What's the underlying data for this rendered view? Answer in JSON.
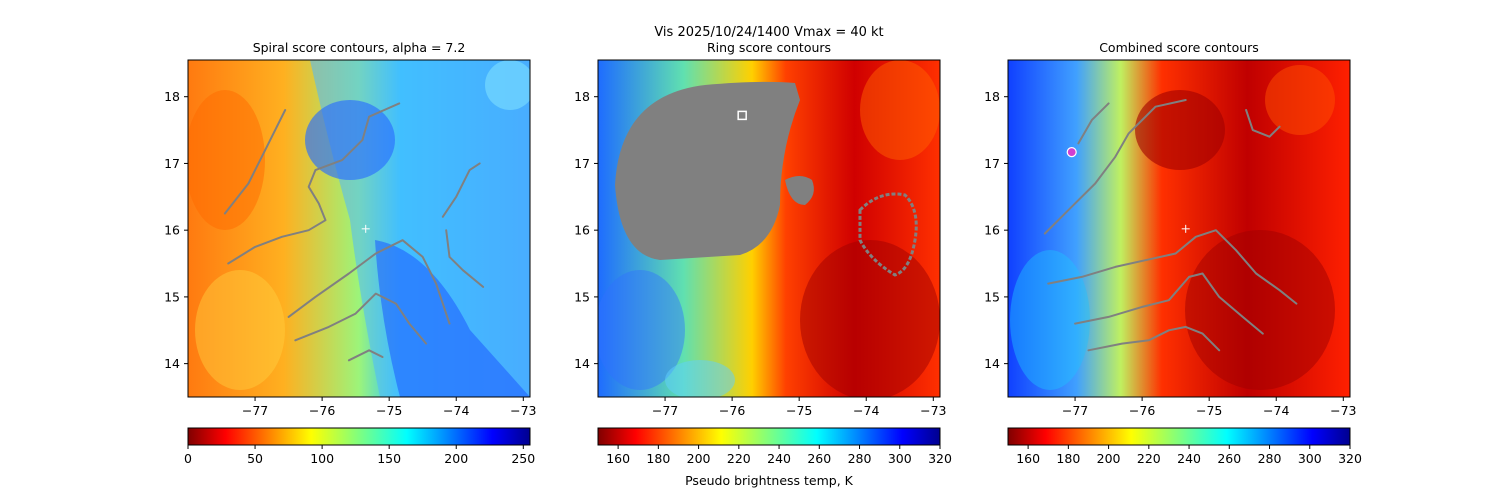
{
  "figure": {
    "suptitle_line1": "Vis  2025/10/24/1400    Vmax = 40 kt",
    "colorbar_label": "Pseudo brightness temp, K"
  },
  "chart_data": [
    {
      "type": "heatmap",
      "title": "Spiral score contours, alpha =  7.2",
      "x_ticks": [
        -77,
        -76,
        -75,
        -74,
        -73
      ],
      "y_ticks": [
        14,
        15,
        16,
        17,
        18
      ],
      "xlim": [
        -78.0,
        -72.9
      ],
      "ylim": [
        13.5,
        18.55
      ],
      "colorbar": {
        "ticks": [
          0,
          50,
          100,
          150,
          200,
          250
        ],
        "range": [
          0,
          255
        ],
        "colormap": "jet_r"
      },
      "center_marker": {
        "lon": -75.35,
        "lat": 16.02,
        "style": "plus",
        "color": "#ffffff"
      },
      "contours": [
        [
          [
            -77.45,
            16.25
          ],
          [
            -77.1,
            16.7
          ],
          [
            -76.8,
            17.3
          ],
          [
            -76.55,
            17.8
          ]
        ],
        [
          [
            -77.4,
            15.5
          ],
          [
            -77.0,
            15.75
          ],
          [
            -76.6,
            15.9
          ],
          [
            -76.2,
            16.0
          ],
          [
            -75.95,
            16.15
          ],
          [
            -76.05,
            16.4
          ],
          [
            -76.2,
            16.65
          ],
          [
            -76.1,
            16.9
          ],
          [
            -75.7,
            17.05
          ],
          [
            -75.4,
            17.35
          ],
          [
            -75.3,
            17.7
          ],
          [
            -74.85,
            17.9
          ]
        ],
        [
          [
            -76.5,
            14.7
          ],
          [
            -76.1,
            15.0
          ],
          [
            -75.6,
            15.35
          ],
          [
            -75.2,
            15.65
          ],
          [
            -74.8,
            15.85
          ],
          [
            -74.5,
            15.6
          ],
          [
            -74.3,
            15.2
          ],
          [
            -74.1,
            14.6
          ]
        ],
        [
          [
            -76.4,
            14.35
          ],
          [
            -75.9,
            14.55
          ],
          [
            -75.5,
            14.75
          ],
          [
            -75.2,
            15.05
          ],
          [
            -74.9,
            14.9
          ],
          [
            -74.7,
            14.6
          ],
          [
            -74.45,
            14.3
          ]
        ],
        [
          [
            -75.6,
            14.05
          ],
          [
            -75.3,
            14.2
          ],
          [
            -75.1,
            14.1
          ]
        ],
        [
          [
            -74.2,
            16.2
          ],
          [
            -74.0,
            16.5
          ],
          [
            -73.8,
            16.9
          ],
          [
            -73.65,
            17.0
          ]
        ],
        [
          [
            -74.15,
            16.0
          ],
          [
            -74.1,
            15.6
          ],
          [
            -73.9,
            15.4
          ],
          [
            -73.6,
            15.15
          ]
        ]
      ]
    },
    {
      "type": "heatmap",
      "title": "Ring score contours",
      "x_ticks": [
        -77,
        -76,
        -75,
        -74,
        -73
      ],
      "y_ticks": [
        14,
        15,
        16,
        17,
        18
      ],
      "xlim": [
        -78.0,
        -72.9
      ],
      "ylim": [
        13.5,
        18.55
      ],
      "colorbar": {
        "ticks": [
          160,
          180,
          200,
          220,
          240,
          260,
          280,
          300,
          320
        ],
        "range": [
          150,
          320
        ],
        "colormap": "jet_r"
      },
      "square_marker": {
        "lon": -75.85,
        "lat": 17.72,
        "style": "square",
        "color": "#ffffff"
      }
    },
    {
      "type": "heatmap",
      "title": "Combined score contours",
      "x_ticks": [
        -77,
        -76,
        -75,
        -74,
        -73
      ],
      "y_ticks": [
        14,
        15,
        16,
        17,
        18
      ],
      "xlim": [
        -78.0,
        -72.9
      ],
      "ylim": [
        13.5,
        18.55
      ],
      "colorbar": {
        "ticks": [
          160,
          180,
          200,
          220,
          240,
          260,
          280,
          300,
          320
        ],
        "range": [
          150,
          320
        ],
        "colormap": "jet_r"
      },
      "center_marker": {
        "lon": -75.35,
        "lat": 16.02,
        "style": "plus",
        "color": "#ffffff"
      },
      "circle_marker": {
        "lon": -77.05,
        "lat": 17.17,
        "style": "circle",
        "color": "#d03fd0"
      },
      "contours": [
        [
          [
            -77.45,
            15.95
          ],
          [
            -77.1,
            16.3
          ],
          [
            -76.7,
            16.7
          ],
          [
            -76.4,
            17.1
          ],
          [
            -76.2,
            17.45
          ],
          [
            -75.8,
            17.85
          ],
          [
            -75.35,
            17.95
          ]
        ],
        [
          [
            -77.4,
            15.2
          ],
          [
            -76.9,
            15.3
          ],
          [
            -76.4,
            15.45
          ],
          [
            -75.95,
            15.55
          ],
          [
            -75.5,
            15.65
          ],
          [
            -75.2,
            15.9
          ],
          [
            -74.9,
            16.0
          ],
          [
            -74.6,
            15.7
          ],
          [
            -74.3,
            15.35
          ],
          [
            -73.95,
            15.1
          ],
          [
            -73.7,
            14.9
          ]
        ],
        [
          [
            -77.0,
            14.6
          ],
          [
            -76.5,
            14.7
          ],
          [
            -76.0,
            14.85
          ],
          [
            -75.6,
            14.95
          ],
          [
            -75.3,
            15.3
          ],
          [
            -75.1,
            15.35
          ],
          [
            -74.85,
            15.0
          ],
          [
            -74.5,
            14.7
          ],
          [
            -74.2,
            14.45
          ]
        ],
        [
          [
            -76.8,
            14.2
          ],
          [
            -76.3,
            14.3
          ],
          [
            -75.9,
            14.35
          ],
          [
            -75.6,
            14.5
          ],
          [
            -75.35,
            14.55
          ],
          [
            -75.1,
            14.45
          ],
          [
            -74.85,
            14.2
          ]
        ],
        [
          [
            -74.45,
            17.8
          ],
          [
            -74.35,
            17.5
          ],
          [
            -74.1,
            17.4
          ],
          [
            -73.95,
            17.55
          ]
        ],
        [
          [
            -76.95,
            17.3
          ],
          [
            -76.75,
            17.65
          ],
          [
            -76.5,
            17.9
          ]
        ]
      ]
    }
  ]
}
